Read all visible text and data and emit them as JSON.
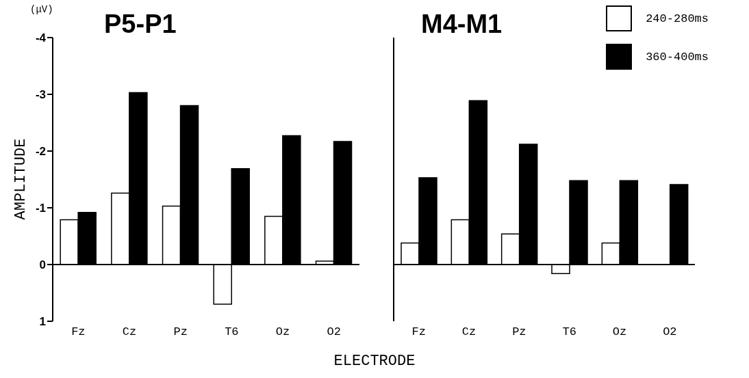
{
  "chart_data": [
    {
      "type": "bar",
      "title": "P5-P1",
      "xlabel": "ELECTRODE",
      "ylabel": "AMPLITUDE",
      "annotations": [
        "(μV)"
      ],
      "categories": [
        "Fz",
        "Cz",
        "Pz",
        "T6",
        "Oz",
        "O2"
      ],
      "series": [
        {
          "color": "#ffffff",
          "values": [
            -0.79,
            -1.26,
            -1.03,
            0.7,
            -0.85,
            -0.06
          ]
        },
        {
          "color": "#000000",
          "values": [
            -0.92,
            -3.03,
            -2.8,
            -1.69,
            -2.27,
            -2.17
          ]
        }
      ],
      "ylim": [
        1,
        -4
      ],
      "yticks": [
        -4,
        -3,
        -2,
        -1,
        0,
        1
      ],
      "ref_lines": [
        {
          "axis": "y",
          "value": 0
        }
      ],
      "grid": false,
      "legend": false
    },
    {
      "type": "bar",
      "title": "M4-M1",
      "categories": [
        "Fz",
        "Cz",
        "Pz",
        "T6",
        "Oz",
        "O2"
      ],
      "series": [
        {
          "name": "240-280ms",
          "color": "#ffffff",
          "values": [
            -0.38,
            -0.79,
            -0.54,
            0.16,
            -0.38,
            0
          ]
        },
        {
          "name": "360-400ms",
          "color": "#000000",
          "values": [
            -1.53,
            -2.89,
            -2.12,
            -1.48,
            -1.48,
            -1.41
          ]
        }
      ],
      "ylim": [
        1,
        -4
      ],
      "yticks": [
        -4,
        -3,
        -2,
        -1,
        0,
        1
      ],
      "tick_labels": "x",
      "ref_lines": [
        {
          "axis": "y",
          "value": 0
        }
      ],
      "grid": false,
      "legend": "top right"
    }
  ]
}
